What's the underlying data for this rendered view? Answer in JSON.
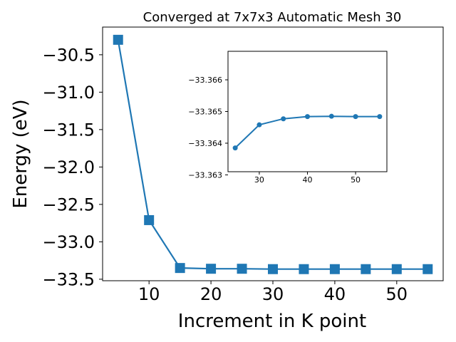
{
  "chart_data": [
    {
      "type": "line",
      "title": "Converged at 7x7x3 Automatic Mesh 30",
      "xlabel": "Increment in K point",
      "ylabel": "Energy (eV)",
      "xlim": [
        2.5,
        57.5
      ],
      "ylim": [
        -33.52,
        -30.13
      ],
      "xticks": [
        10,
        20,
        30,
        40,
        50
      ],
      "xtick_labels": [
        "10",
        "20",
        "30",
        "40",
        "50"
      ],
      "yticks": [
        -30.5,
        -31.0,
        -31.5,
        -32.0,
        -32.5,
        -33.0,
        -33.5
      ],
      "ytick_labels": [
        "−30.5",
        "−31.0",
        "−31.5",
        "−32.0",
        "−32.5",
        "−33.0",
        "−33.5"
      ],
      "grid": false,
      "marker": "square",
      "color": "#1f77b4",
      "x": [
        5,
        10,
        15,
        20,
        25,
        30,
        35,
        40,
        45,
        50,
        55
      ],
      "y": [
        -30.3,
        -32.71,
        -33.35,
        -33.36,
        -33.36,
        -33.365,
        -33.365,
        -33.365,
        -33.365,
        -33.365,
        -33.365
      ]
    },
    {
      "type": "line",
      "role": "inset",
      "xlim": [
        23.5,
        56.5
      ],
      "ylim": [
        -33.3669,
        -33.3631
      ],
      "xticks": [
        30,
        40,
        50
      ],
      "xtick_labels": [
        "30",
        "40",
        "50"
      ],
      "yticks": [
        -33.366,
        -33.365,
        -33.364,
        -33.363
      ],
      "ytick_labels": [
        "−33.366",
        "−33.365",
        "−33.364",
        "−33.363"
      ],
      "y_inverted": true,
      "grid": false,
      "marker": "circle",
      "color": "#1f77b4",
      "x": [
        25,
        30,
        35,
        40,
        45,
        50,
        55
      ],
      "y": [
        -33.36385,
        -33.36458,
        -33.36477,
        -33.36484,
        -33.36485,
        -33.36484,
        -33.36484
      ]
    }
  ]
}
